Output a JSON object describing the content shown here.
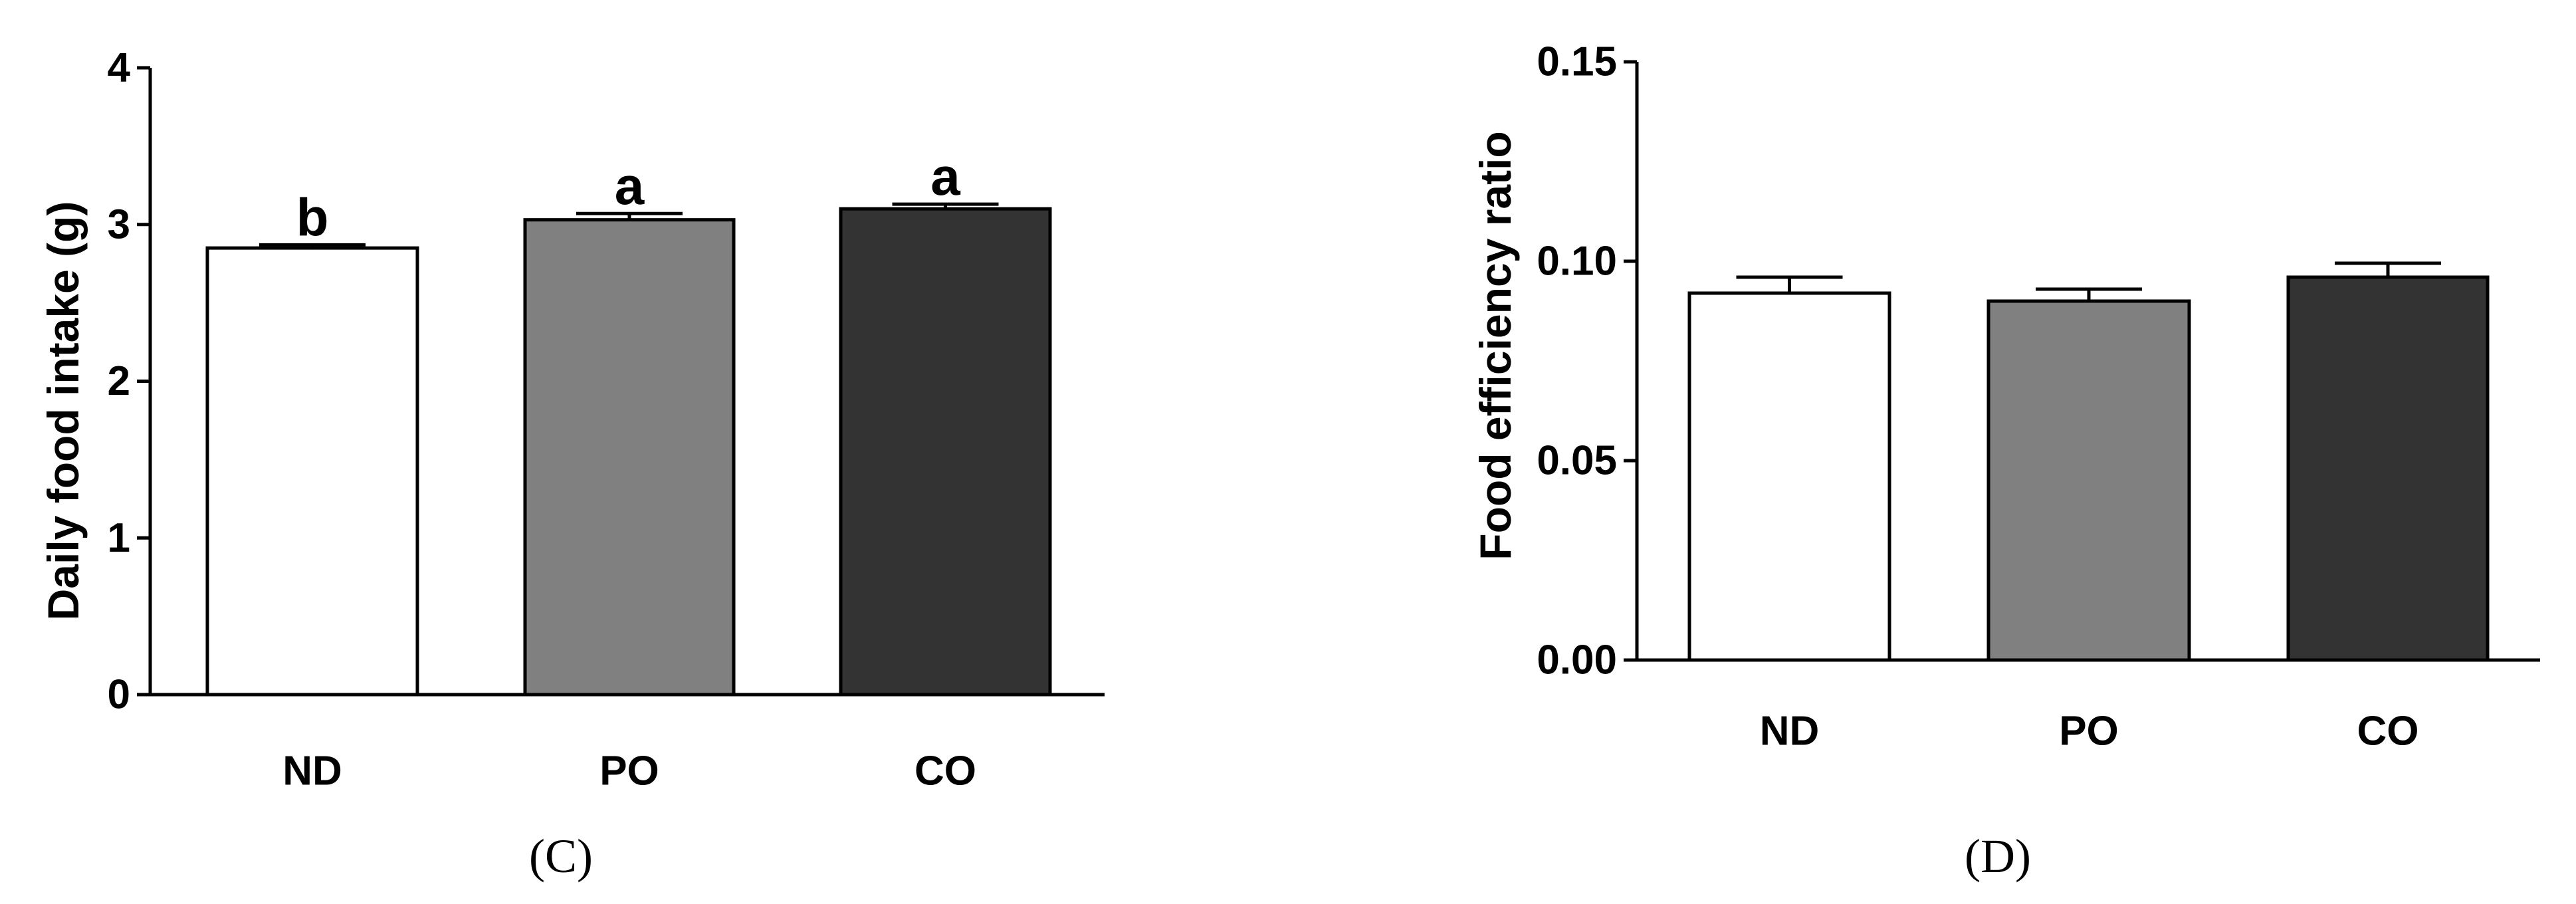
{
  "chart_data": [
    {
      "type": "bar",
      "panel_label": "(C)",
      "ylabel": "Daily food intake (g)",
      "categories": [
        "ND",
        "PO",
        "CO"
      ],
      "values": [
        2.85,
        3.03,
        3.1
      ],
      "errors": [
        0.02,
        0.04,
        0.03
      ],
      "significance": [
        "b",
        "a",
        "a"
      ],
      "colors": [
        "#ffffff",
        "#808080",
        "#333333"
      ],
      "ylim": [
        0,
        4
      ],
      "yticks": [
        0,
        1,
        2,
        3,
        4
      ],
      "ytick_labels": [
        "0",
        "1",
        "2",
        "3",
        "4"
      ],
      "grid": false
    },
    {
      "type": "bar",
      "panel_label": "(D)",
      "ylabel": "Food efficiency ratio",
      "categories": [
        "ND",
        "PO",
        "CO"
      ],
      "values": [
        0.092,
        0.09,
        0.096
      ],
      "errors": [
        0.004,
        0.003,
        0.0035
      ],
      "significance": [
        "",
        "",
        ""
      ],
      "colors": [
        "#ffffff",
        "#808080",
        "#333333"
      ],
      "ylim": [
        0,
        0.15
      ],
      "yticks": [
        0,
        0.05,
        0.1,
        0.15
      ],
      "ytick_labels": [
        "0.00",
        "0.05",
        "0.10",
        "0.15"
      ],
      "grid": false
    }
  ]
}
